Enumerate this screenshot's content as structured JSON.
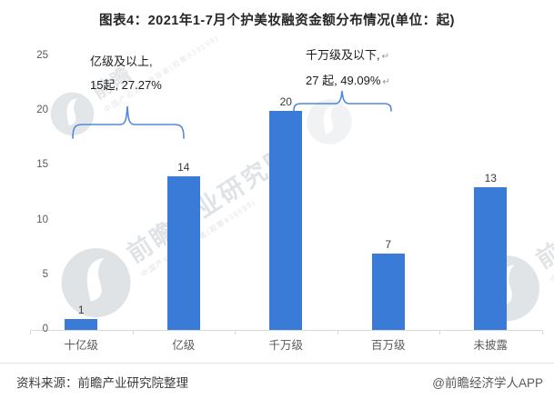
{
  "title": "图表4：2021年1-7月个护美妆融资金额分布情况(单位：起)",
  "chart_data": {
    "type": "bar",
    "title": "图表4：2021年1-7月个护美妆融资金额分布情况(单位：起)",
    "unit": "起",
    "categories": [
      "十亿级",
      "亿级",
      "千万级",
      "百万级",
      "未披露"
    ],
    "values": [
      1,
      14,
      20,
      7,
      13
    ],
    "value_labels": [
      "1",
      "14",
      "20",
      "7",
      "13"
    ],
    "xlabel": "",
    "ylabel": "",
    "ylim": [
      0,
      25
    ],
    "yticks": [
      0,
      5,
      10,
      15,
      20,
      25
    ],
    "ytick_labels": [
      "0",
      "5",
      "10",
      "15",
      "20",
      "25"
    ],
    "grid": false,
    "legend": "none",
    "bar_color": "#3a7bd8",
    "brace_color": "#5488d8",
    "annotations": [
      {
        "line1": "亿级及以上,",
        "line2": "15起, 27.27%",
        "span_categories": [
          "十亿级",
          "亿级"
        ],
        "return_mark": ""
      },
      {
        "line1": "千万级及以下,",
        "line2": "27 起, 49.09%",
        "span_categories": [
          "千万级",
          "百万级"
        ],
        "return_mark": "↵"
      }
    ]
  },
  "footer": {
    "source": "资料来源：前瞻产业研究院整理",
    "credit": "@前瞻经济学人APP"
  },
  "watermark": {
    "name": "前瞻产业研究院",
    "name_short": "前瞻",
    "tagline": "中国产业咨询领导者(股票839599)"
  },
  "colors": {
    "bar": "#3a7bd8",
    "brace": "#5488d8",
    "axis": "#d9d9d9",
    "tick_text": "#595959",
    "title_text": "#262626",
    "background": "#ffffff"
  }
}
